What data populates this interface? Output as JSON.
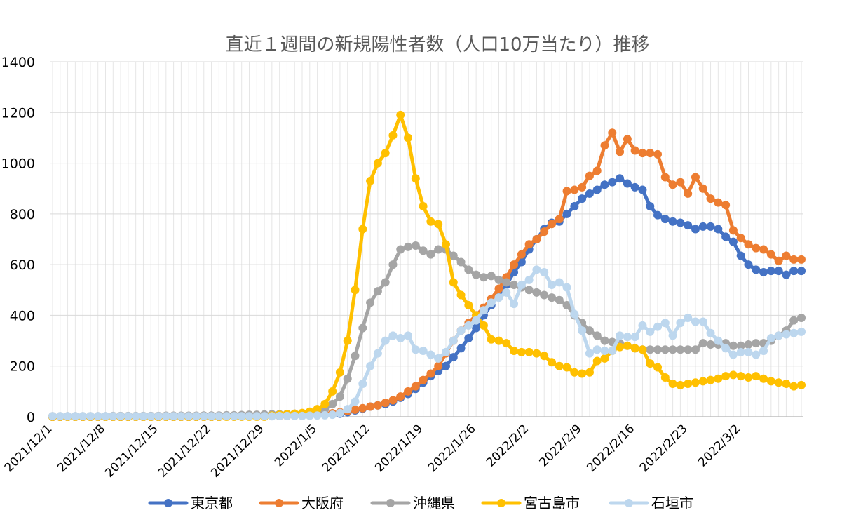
{
  "chart_data": {
    "type": "line",
    "title": "直近１週間の新規陽性者数（人口10万当たり）推移",
    "xlabel": "",
    "ylabel": "",
    "ylim": [
      0,
      1400
    ],
    "yticks": [
      0,
      200,
      400,
      600,
      800,
      1000,
      1200,
      1400
    ],
    "x_start": "2021/12/1",
    "x_end": "2022/3/6",
    "x_tick_labels": [
      "2021/12/1",
      "2021/12/8",
      "2021/12/15",
      "2021/12/22",
      "2021/12/29",
      "2022/1/5",
      "2022/1/12",
      "2022/1/19",
      "2022/1/26",
      "2022/2/2",
      "2022/2/9",
      "2022/2/16",
      "2022/2/23",
      "2022/3/2"
    ],
    "grid": true,
    "legend_position": "bottom",
    "series": [
      {
        "name": "東京都",
        "color": "#4472C4",
        "values": [
          0,
          0,
          0,
          0,
          0,
          0,
          0,
          0,
          0,
          0,
          0,
          0,
          0,
          0,
          0,
          0,
          0,
          0,
          0,
          0,
          0,
          0,
          0,
          1,
          1,
          1,
          2,
          2,
          2,
          3,
          3,
          4,
          4,
          5,
          6,
          7,
          8,
          10,
          12,
          18,
          25,
          32,
          40,
          45,
          50,
          60,
          75,
          90,
          110,
          135,
          160,
          180,
          200,
          235,
          270,
          310,
          350,
          400,
          440,
          480,
          520,
          570,
          610,
          660,
          700,
          740,
          765,
          770,
          800,
          830,
          860,
          880,
          895,
          915,
          925,
          940,
          920,
          905,
          895,
          830,
          795,
          780,
          770,
          765,
          755,
          740,
          750,
          750,
          740,
          710,
          690,
          635,
          600,
          580,
          570,
          575,
          575,
          560,
          575,
          575
        ]
      },
      {
        "name": "大阪府",
        "color": "#ED7D31",
        "values": [
          0,
          0,
          0,
          0,
          0,
          0,
          0,
          0,
          0,
          0,
          0,
          0,
          0,
          0,
          0,
          0,
          0,
          0,
          0,
          0,
          0,
          0,
          0,
          1,
          1,
          1,
          2,
          2,
          2,
          3,
          3,
          3,
          4,
          5,
          6,
          8,
          10,
          14,
          18,
          22,
          28,
          34,
          40,
          45,
          55,
          65,
          80,
          100,
          120,
          145,
          170,
          200,
          250,
          300,
          340,
          370,
          400,
          430,
          465,
          505,
          550,
          600,
          640,
          680,
          700,
          730,
          760,
          780,
          890,
          895,
          905,
          950,
          970,
          1070,
          1120,
          1045,
          1095,
          1050,
          1040,
          1040,
          1035,
          945,
          915,
          925,
          880,
          945,
          900,
          860,
          845,
          835,
          735,
          705,
          680,
          665,
          660,
          640,
          615,
          635,
          620,
          620
        ]
      },
      {
        "name": "沖縄県",
        "color": "#A5A5A5",
        "values": [
          2,
          2,
          2,
          2,
          2,
          2,
          2,
          2,
          3,
          3,
          3,
          3,
          3,
          3,
          3,
          4,
          4,
          4,
          4,
          4,
          5,
          5,
          5,
          6,
          6,
          7,
          8,
          8,
          9,
          10,
          10,
          11,
          12,
          14,
          16,
          20,
          30,
          50,
          80,
          150,
          240,
          350,
          450,
          495,
          530,
          600,
          660,
          670,
          675,
          655,
          640,
          660,
          660,
          635,
          610,
          580,
          560,
          550,
          555,
          540,
          530,
          520,
          510,
          500,
          490,
          480,
          470,
          460,
          440,
          400,
          370,
          340,
          320,
          300,
          295,
          290,
          280,
          270,
          265,
          265,
          265,
          265,
          265,
          265,
          265,
          265,
          290,
          285,
          285,
          290,
          280,
          280,
          285,
          290,
          290,
          300,
          320,
          340,
          380,
          390
        ]
      },
      {
        "name": "宮古島市",
        "color": "#FFC000",
        "values": [
          0,
          0,
          0,
          0,
          0,
          0,
          0,
          0,
          0,
          0,
          0,
          0,
          0,
          0,
          0,
          0,
          0,
          0,
          0,
          0,
          0,
          0,
          0,
          0,
          0,
          0,
          0,
          0,
          0,
          5,
          8,
          10,
          12,
          15,
          20,
          30,
          50,
          100,
          175,
          300,
          500,
          740,
          930,
          1000,
          1040,
          1110,
          1190,
          1100,
          940,
          830,
          770,
          760,
          680,
          530,
          480,
          440,
          400,
          360,
          305,
          300,
          290,
          260,
          255,
          255,
          250,
          240,
          215,
          200,
          195,
          175,
          170,
          175,
          220,
          230,
          260,
          275,
          280,
          270,
          265,
          210,
          195,
          155,
          130,
          125,
          130,
          135,
          140,
          145,
          150,
          160,
          165,
          160,
          155,
          160,
          150,
          140,
          135,
          130,
          120,
          125
        ]
      },
      {
        "name": "石垣市",
        "color": "#BDD7EE",
        "values": [
          2,
          2,
          2,
          2,
          2,
          2,
          2,
          2,
          2,
          2,
          2,
          2,
          2,
          2,
          2,
          2,
          2,
          2,
          2,
          2,
          2,
          2,
          2,
          2,
          2,
          2,
          2,
          2,
          2,
          2,
          3,
          3,
          3,
          3,
          4,
          5,
          6,
          8,
          15,
          30,
          60,
          130,
          200,
          250,
          300,
          320,
          310,
          320,
          265,
          260,
          245,
          230,
          255,
          300,
          340,
          360,
          380,
          420,
          450,
          470,
          490,
          445,
          520,
          540,
          580,
          570,
          520,
          530,
          510,
          405,
          340,
          250,
          265,
          260,
          260,
          320,
          315,
          315,
          360,
          335,
          355,
          370,
          320,
          370,
          390,
          375,
          375,
          330,
          300,
          270,
          245,
          255,
          255,
          245,
          260,
          310,
          320,
          325,
          330,
          335
        ]
      }
    ]
  }
}
